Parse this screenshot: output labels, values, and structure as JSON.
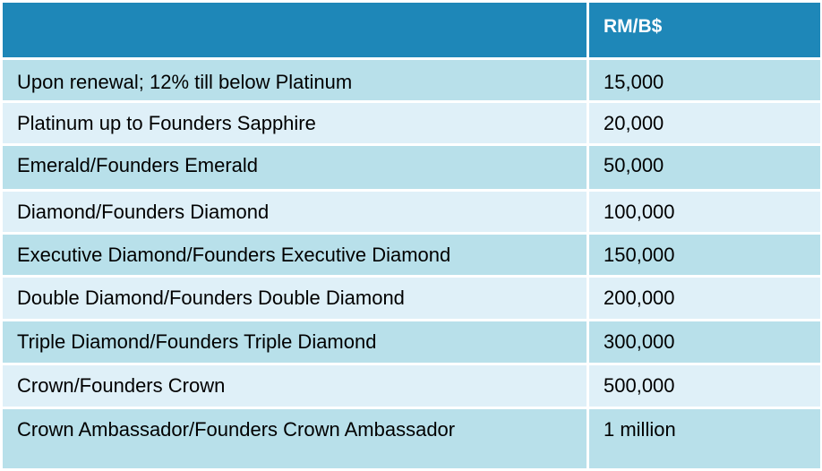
{
  "header": {
    "col1": "",
    "col2": "RM/B$"
  },
  "rows": [
    {
      "tier": "Upon renewal; 12% till below Platinum",
      "amount": "15,000"
    },
    {
      "tier": "Platinum up to Founders Sapphire",
      "amount": "20,000"
    },
    {
      "tier": "Emerald/Founders Emerald",
      "amount": "50,000"
    },
    {
      "tier": "Diamond/Founders Diamond",
      "amount": "100,000"
    },
    {
      "tier": "Executive Diamond/Founders Executive Diamond",
      "amount": "150,000"
    },
    {
      "tier": "Double Diamond/Founders Double Diamond",
      "amount": "200,000"
    },
    {
      "tier": "Triple Diamond/Founders Triple Diamond",
      "amount": "300,000"
    },
    {
      "tier": "Crown/Founders Crown",
      "amount": "500,000"
    },
    {
      "tier": "Crown Ambassador/Founders Crown Ambassador",
      "amount": "1 million"
    }
  ],
  "colors": {
    "header": "#1e87b8",
    "row_dark": "#b8e0ea",
    "row_light": "#dff0f8",
    "header_text": "#ffffff"
  }
}
